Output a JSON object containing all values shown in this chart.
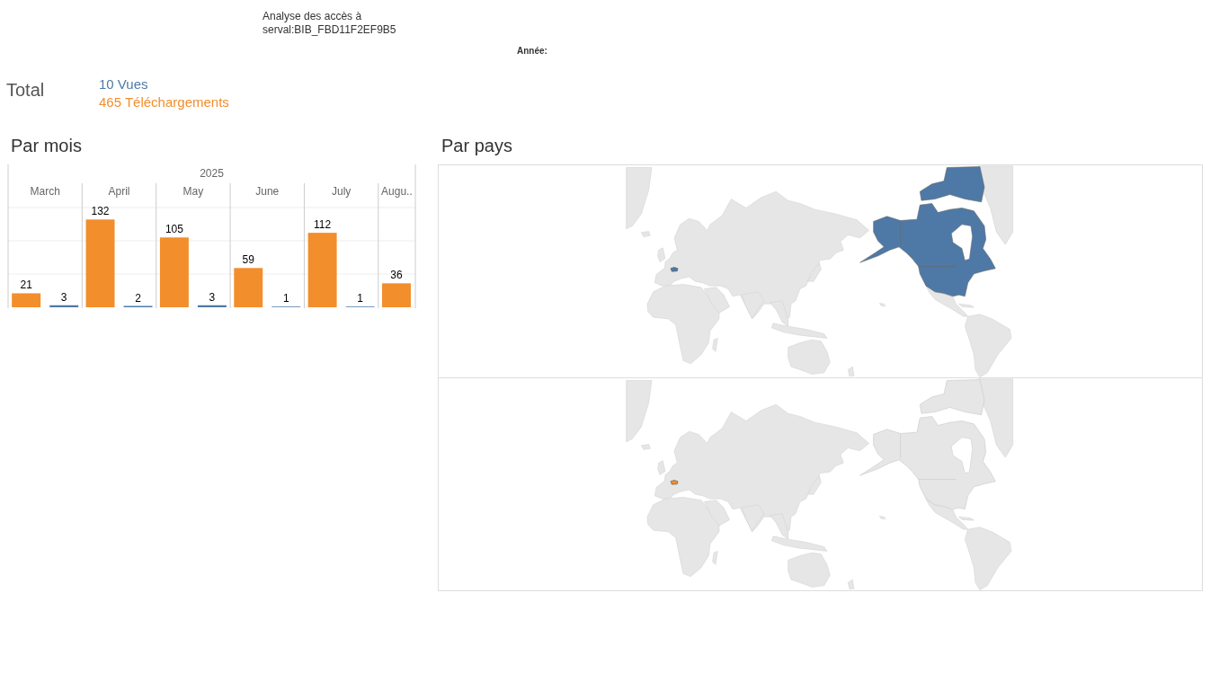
{
  "chart_data": [
    {
      "type": "other",
      "title": "Analyse des accès à serval:BIB_FBD11F2EF9B5",
      "annotations": [
        "Année:"
      ]
    },
    {
      "type": "other",
      "title": "Total",
      "annotations": [
        "10 Vues",
        "465 Téléchargements"
      ],
      "colors": [
        "#4e79a7",
        "#f28e2b"
      ]
    },
    {
      "type": "bar",
      "title": "Par mois",
      "xlabel": "2025",
      "categories": [
        "March",
        "April",
        "May",
        "June",
        "July",
        "Augu.."
      ],
      "series": [
        {
          "color": "#f28e2b",
          "values": [
            21,
            132,
            105,
            59,
            112,
            36
          ]
        },
        {
          "color": "#4e79a7",
          "values": [
            3,
            2,
            3,
            1,
            1,
            null
          ]
        }
      ],
      "ylim": [
        0,
        150
      ],
      "yticks": [
        {
          "value": 50,
          "label": null
        },
        {
          "value": 100,
          "label": null
        },
        {
          "value": 150,
          "label": null
        }
      ],
      "grid": true,
      "tick_labels": "x",
      "data_labels": true
    },
    {
      "type": "other",
      "title": "Par pays",
      "colors": [
        "#4e79a7",
        "#f28e2b"
      ]
    }
  ]
}
